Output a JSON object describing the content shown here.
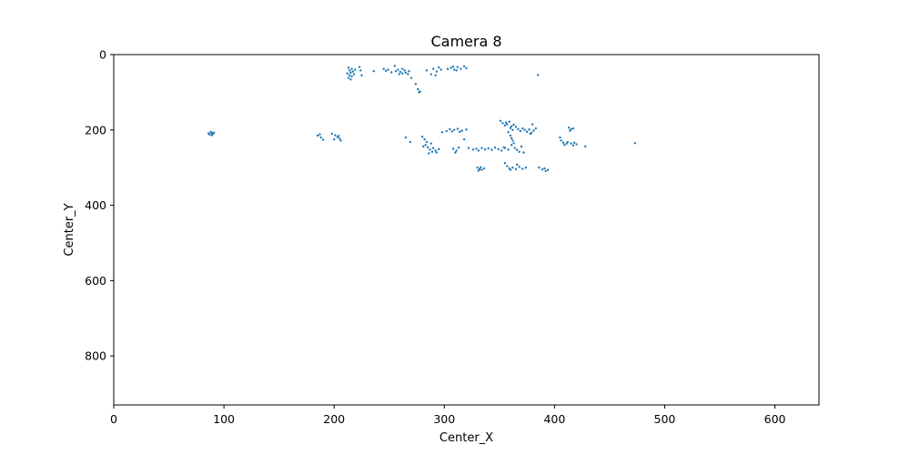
{
  "chart_data": {
    "type": "scatter",
    "title": "Camera 8",
    "xlabel": "Center_X",
    "ylabel": "Center_Y",
    "xlim": [
      0,
      640
    ],
    "ylim": [
      930,
      0
    ],
    "y_inverted": true,
    "grid": false,
    "legend": "none",
    "x_ticks": [
      0,
      100,
      200,
      300,
      400,
      500,
      600
    ],
    "y_ticks": [
      0,
      200,
      400,
      600,
      800
    ],
    "marker_color": "#1f77b4",
    "series": [
      {
        "points": [
          [
            88,
            205
          ],
          [
            89,
            208
          ],
          [
            90,
            210
          ],
          [
            87,
            212
          ],
          [
            91,
            207
          ],
          [
            89,
            214
          ],
          [
            86,
            209
          ],
          [
            185,
            215
          ],
          [
            188,
            220
          ],
          [
            190,
            226
          ],
          [
            187,
            212
          ],
          [
            198,
            210
          ],
          [
            201,
            214
          ],
          [
            203,
            219
          ],
          [
            205,
            223
          ],
          [
            200,
            225
          ],
          [
            206,
            228
          ],
          [
            204,
            216
          ],
          [
            213,
            35
          ],
          [
            214,
            42
          ],
          [
            215,
            48
          ],
          [
            214,
            55
          ],
          [
            213,
            62
          ],
          [
            216,
            38
          ],
          [
            217,
            45
          ],
          [
            218,
            52
          ],
          [
            215,
            66
          ],
          [
            219,
            40
          ],
          [
            212,
            50
          ],
          [
            216,
            58
          ],
          [
            223,
            33
          ],
          [
            224,
            42
          ],
          [
            225,
            55
          ],
          [
            236,
            44
          ],
          [
            245,
            38
          ],
          [
            247,
            43
          ],
          [
            249,
            40
          ],
          [
            252,
            47
          ],
          [
            255,
            30
          ],
          [
            256,
            44
          ],
          [
            258,
            40
          ],
          [
            260,
            46
          ],
          [
            262,
            50
          ],
          [
            264,
            42
          ],
          [
            265,
            48
          ],
          [
            267,
            52
          ],
          [
            262,
            38
          ],
          [
            268,
            44
          ],
          [
            259,
            52
          ],
          [
            270,
            62
          ],
          [
            274,
            78
          ],
          [
            276,
            92
          ],
          [
            278,
            98
          ],
          [
            277,
            100
          ],
          [
            284,
            42
          ],
          [
            288,
            52
          ],
          [
            290,
            38
          ],
          [
            293,
            45
          ],
          [
            295,
            34
          ],
          [
            297,
            40
          ],
          [
            292,
            55
          ],
          [
            303,
            38
          ],
          [
            306,
            35
          ],
          [
            309,
            40
          ],
          [
            312,
            33
          ],
          [
            315,
            38
          ],
          [
            318,
            31
          ],
          [
            320,
            36
          ],
          [
            311,
            42
          ],
          [
            308,
            32
          ],
          [
            385,
            54
          ],
          [
            265,
            220
          ],
          [
            269,
            232
          ],
          [
            280,
            218
          ],
          [
            282,
            225
          ],
          [
            284,
            232
          ],
          [
            283,
            240
          ],
          [
            285,
            246
          ],
          [
            287,
            252
          ],
          [
            289,
            258
          ],
          [
            286,
            262
          ],
          [
            290,
            248
          ],
          [
            292,
            255
          ],
          [
            295,
            251
          ],
          [
            288,
            236
          ],
          [
            281,
            244
          ],
          [
            293,
            260
          ],
          [
            298,
            206
          ],
          [
            302,
            203
          ],
          [
            305,
            198
          ],
          [
            309,
            200
          ],
          [
            312,
            197
          ],
          [
            316,
            202
          ],
          [
            320,
            199
          ],
          [
            307,
            204
          ],
          [
            314,
            205
          ],
          [
            308,
            250
          ],
          [
            311,
            255
          ],
          [
            313,
            247
          ],
          [
            310,
            260
          ],
          [
            318,
            225
          ],
          [
            322,
            248
          ],
          [
            326,
            252
          ],
          [
            329,
            250
          ],
          [
            331,
            255
          ],
          [
            334,
            248
          ],
          [
            337,
            252
          ],
          [
            340,
            249
          ],
          [
            343,
            253
          ],
          [
            346,
            247
          ],
          [
            349,
            251
          ],
          [
            352,
            255
          ],
          [
            355,
            248
          ],
          [
            358,
            252
          ],
          [
            354,
            246
          ],
          [
            330,
            300
          ],
          [
            332,
            304
          ],
          [
            334,
            306
          ],
          [
            336,
            302
          ],
          [
            331,
            308
          ],
          [
            333,
            299
          ],
          [
            351,
            176
          ],
          [
            353,
            182
          ],
          [
            355,
            188
          ],
          [
            357,
            185
          ],
          [
            359,
            178
          ],
          [
            361,
            190
          ],
          [
            363,
            186
          ],
          [
            360,
            195
          ],
          [
            362,
            200
          ],
          [
            358,
            206
          ],
          [
            356,
            180
          ],
          [
            365,
            192
          ],
          [
            367,
            198
          ],
          [
            369,
            203
          ],
          [
            371,
            196
          ],
          [
            373,
            200
          ],
          [
            375,
            205
          ],
          [
            377,
            199
          ],
          [
            379,
            208
          ],
          [
            381,
            202
          ],
          [
            383,
            196
          ],
          [
            380,
            185
          ],
          [
            378,
            210
          ],
          [
            360,
            215
          ],
          [
            361,
            222
          ],
          [
            362,
            228
          ],
          [
            363,
            235
          ],
          [
            361,
            240
          ],
          [
            364,
            248
          ],
          [
            366,
            253
          ],
          [
            368,
            258
          ],
          [
            370,
            244
          ],
          [
            372,
            260
          ],
          [
            355,
            288
          ],
          [
            357,
            296
          ],
          [
            359,
            302
          ],
          [
            362,
            300
          ],
          [
            365,
            304
          ],
          [
            368,
            298
          ],
          [
            371,
            303
          ],
          [
            374,
            300
          ],
          [
            366,
            292
          ],
          [
            360,
            306
          ],
          [
            386,
            300
          ],
          [
            389,
            305
          ],
          [
            391,
            302
          ],
          [
            394,
            306
          ],
          [
            392,
            309
          ],
          [
            405,
            220
          ],
          [
            406,
            228
          ],
          [
            408,
            234
          ],
          [
            409,
            240
          ],
          [
            411,
            236
          ],
          [
            413,
            194
          ],
          [
            415,
            198
          ],
          [
            417,
            196
          ],
          [
            414,
            202
          ],
          [
            412,
            232
          ],
          [
            415,
            236
          ],
          [
            418,
            234
          ],
          [
            420,
            238
          ],
          [
            417,
            241
          ],
          [
            428,
            244
          ],
          [
            473,
            235
          ]
        ]
      }
    ]
  }
}
